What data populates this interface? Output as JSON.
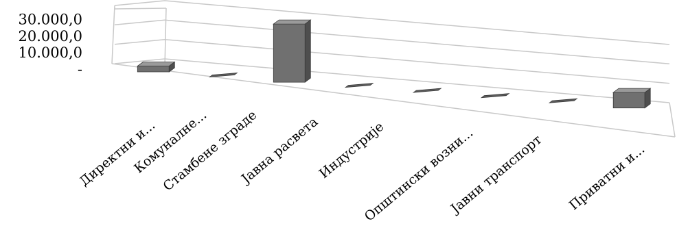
{
  "chart_data": {
    "type": "bar",
    "categories": [
      "Директни и...",
      "Комуналне...",
      "Стамбене зграде",
      "Јавна расвета",
      "Индустрије",
      "Општински возни...",
      "Јавни транспорт",
      "Приватни и..."
    ],
    "values": [
      3000,
      0,
      30000,
      0,
      0,
      0,
      0,
      8000
    ],
    "ylim": [
      0,
      30000
    ],
    "yticks": [
      {
        "value": 0,
        "label": "-"
      },
      {
        "value": 10000,
        "label": "10.000,0"
      },
      {
        "value": 20000,
        "label": "20.000,0"
      },
      {
        "value": 30000,
        "label": "30.000,0"
      }
    ],
    "grid": true,
    "legend": "none",
    "projection": "3d",
    "colors": {
      "bar_front": "#707070",
      "bar_side": "#4e4e4e",
      "bar_top": "#9a9a9a",
      "bar_flat": "#5c5c5c",
      "frame": "#c8c8c8"
    }
  }
}
